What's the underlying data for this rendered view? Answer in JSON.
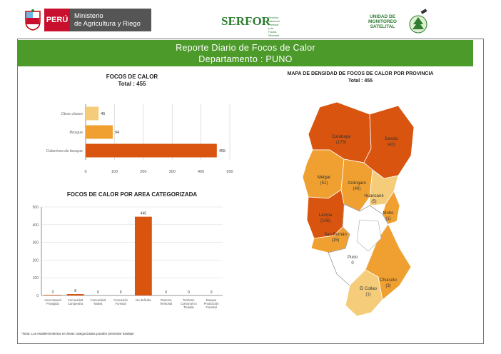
{
  "header": {
    "country": "PERÚ",
    "ministry_line1": "Ministerio",
    "ministry_line2": "de Agricultura y Riego",
    "serfor": "SERFOR",
    "serfor_sub": "Servicio Nacional Forestal y de Fauna Silvestre",
    "unidad_line1": "UNIDAD DE",
    "unidad_line2": "MONITOREO",
    "unidad_line3": "SATELITAL"
  },
  "banner": {
    "line1": "Reporte Diario de Focos de Calor",
    "line2": "Departamento : PUNO"
  },
  "colors": {
    "banner": "#4c9a2a",
    "dark_orange": "#d9540f",
    "mid_orange": "#f0a030",
    "light": "#f5cd7a"
  },
  "chart_data": [
    {
      "type": "bar",
      "orientation": "horizontal",
      "title": "FOCOS DE CALOR",
      "subtitle": "Total : 455",
      "categories": [
        "Otras clases",
        "Bosque",
        "Cobertura de bosque"
      ],
      "values": [
        45,
        94,
        455
      ],
      "data_labels": [
        "45",
        "94",
        "455"
      ],
      "xlim": [
        0,
        500
      ],
      "xticks": [
        0,
        100,
        200,
        300,
        400,
        500
      ]
    },
    {
      "type": "bar",
      "title": "FOCOS DE CALOR POR AREA CATEGORIZADA",
      "categories": [
        "Area Natural Protegida",
        "Comunidad Campesina",
        "Comunidad Nativa",
        "Concesión Forestal",
        "No definida",
        "Reserva Territorial",
        "Territorio Comunal no Titulada",
        "Bosque Producción Forestal"
      ],
      "values": [
        3,
        8,
        0,
        0,
        445,
        0,
        0,
        0
      ],
      "data_labels": [
        "3",
        "8",
        "0",
        "0",
        "445",
        "0",
        "0",
        "0"
      ],
      "ylim": [
        0,
        500
      ],
      "yticks": [
        0,
        100,
        200,
        300,
        400,
        500
      ]
    },
    {
      "type": "map",
      "title": "MAPA DE DENSIDAD DE FOCOS DE CALOR POR PROVINCIA",
      "subtitle": "Total : 455",
      "regions": [
        {
          "name": "Carabaya",
          "value": "(173)"
        },
        {
          "name": "Sandia",
          "value": "(42)"
        },
        {
          "name": "Melgar",
          "value": "(51)"
        },
        {
          "name": "Azángaro",
          "value": "(40)"
        },
        {
          "name": "Huancané",
          "value": "(5)"
        },
        {
          "name": "Moho",
          "value": "(1)"
        },
        {
          "name": "Lampa",
          "value": "(106)"
        },
        {
          "name": "San Román",
          "value": "(15)"
        },
        {
          "name": "Puno",
          "value": "0"
        },
        {
          "name": "El Collao",
          "value": "(1)"
        },
        {
          "name": "Chucuito",
          "value": "(3)"
        }
      ]
    }
  ],
  "footnote": "*Nota: Los establecimientos en áreas categorizadas pueden presentar traslape"
}
